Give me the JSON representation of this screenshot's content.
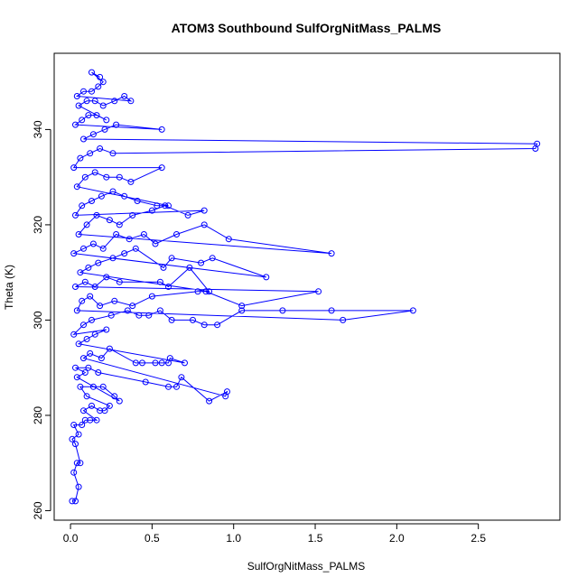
{
  "chart_data": {
    "type": "scatter",
    "title": "ATOM3 Southbound SulfOrgNitMass_PALMS",
    "xlabel": "SulfOrgNitMass_PALMS",
    "ylabel": "Theta (K)",
    "xlim": [
      -0.1,
      3.0
    ],
    "ylim": [
      258,
      356
    ],
    "x_ticks": [
      0.0,
      0.5,
      1.0,
      1.5,
      2.0,
      2.5
    ],
    "x_tick_labels": [
      "0.0",
      "0.5",
      "1.0",
      "1.5",
      "2.0",
      "2.5"
    ],
    "y_ticks": [
      260,
      280,
      300,
      320,
      340
    ],
    "y_tick_labels": [
      "260",
      "280",
      "300",
      "320",
      "340"
    ],
    "grid": false,
    "legend": "none",
    "series_color": "#0000ff",
    "marker": "open-circle",
    "connected": true,
    "series": [
      {
        "points": [
          [
            0.01,
            262
          ],
          [
            0.03,
            262
          ],
          [
            0.05,
            265
          ],
          [
            0.02,
            268
          ],
          [
            0.04,
            270
          ],
          [
            0.06,
            270
          ],
          [
            0.03,
            274
          ],
          [
            0.01,
            275
          ],
          [
            0.05,
            276
          ],
          [
            0.02,
            278
          ],
          [
            0.07,
            278
          ],
          [
            0.09,
            279
          ],
          [
            0.12,
            279
          ],
          [
            0.16,
            279
          ],
          [
            0.08,
            281
          ],
          [
            0.13,
            282
          ],
          [
            0.18,
            281
          ],
          [
            0.21,
            281
          ],
          [
            0.24,
            282
          ],
          [
            0.1,
            284
          ],
          [
            0.06,
            286
          ],
          [
            0.14,
            286
          ],
          [
            0.2,
            286
          ],
          [
            0.27,
            284
          ],
          [
            0.3,
            283
          ],
          [
            0.04,
            288
          ],
          [
            0.09,
            289
          ],
          [
            0.03,
            290
          ],
          [
            0.11,
            290
          ],
          [
            0.17,
            289
          ],
          [
            0.46,
            287
          ],
          [
            0.6,
            286
          ],
          [
            0.65,
            286
          ],
          [
            0.68,
            288
          ],
          [
            0.85,
            283
          ],
          [
            0.96,
            285
          ],
          [
            0.95,
            284
          ],
          [
            0.08,
            292
          ],
          [
            0.12,
            293
          ],
          [
            0.19,
            292
          ],
          [
            0.24,
            294
          ],
          [
            0.4,
            291
          ],
          [
            0.44,
            291
          ],
          [
            0.52,
            291
          ],
          [
            0.56,
            291
          ],
          [
            0.6,
            291
          ],
          [
            0.61,
            292
          ],
          [
            0.7,
            291
          ],
          [
            0.05,
            295
          ],
          [
            0.1,
            296
          ],
          [
            0.15,
            297
          ],
          [
            0.22,
            298
          ],
          [
            0.02,
            297
          ],
          [
            0.08,
            299
          ],
          [
            0.13,
            300
          ],
          [
            0.25,
            301
          ],
          [
            0.35,
            302
          ],
          [
            0.42,
            301
          ],
          [
            0.48,
            301
          ],
          [
            0.55,
            302
          ],
          [
            0.62,
            300
          ],
          [
            0.75,
            300
          ],
          [
            0.82,
            299
          ],
          [
            0.9,
            299
          ],
          [
            1.05,
            302
          ],
          [
            1.3,
            302
          ],
          [
            1.6,
            302
          ],
          [
            2.1,
            302
          ],
          [
            1.67,
            300
          ],
          [
            0.04,
            302
          ],
          [
            0.07,
            304
          ],
          [
            0.12,
            305
          ],
          [
            0.18,
            303
          ],
          [
            0.27,
            304
          ],
          [
            0.38,
            303
          ],
          [
            0.5,
            305
          ],
          [
            0.78,
            306
          ],
          [
            0.83,
            306
          ],
          [
            1.05,
            303
          ],
          [
            1.52,
            306
          ],
          [
            0.03,
            307
          ],
          [
            0.09,
            308
          ],
          [
            0.15,
            307
          ],
          [
            0.22,
            309
          ],
          [
            0.3,
            308
          ],
          [
            0.55,
            308
          ],
          [
            0.6,
            307
          ],
          [
            0.73,
            311
          ],
          [
            0.85,
            306
          ],
          [
            0.06,
            310
          ],
          [
            0.11,
            311
          ],
          [
            0.17,
            312
          ],
          [
            0.26,
            313
          ],
          [
            0.33,
            314
          ],
          [
            0.4,
            315
          ],
          [
            0.57,
            311
          ],
          [
            0.62,
            313
          ],
          [
            0.8,
            312
          ],
          [
            0.87,
            313
          ],
          [
            1.2,
            309
          ],
          [
            0.02,
            314
          ],
          [
            0.08,
            315
          ],
          [
            0.14,
            316
          ],
          [
            0.2,
            315
          ],
          [
            0.28,
            318
          ],
          [
            0.36,
            317
          ],
          [
            0.45,
            318
          ],
          [
            0.52,
            316
          ],
          [
            0.65,
            318
          ],
          [
            0.82,
            320
          ],
          [
            0.97,
            317
          ],
          [
            1.6,
            314
          ],
          [
            0.05,
            318
          ],
          [
            0.1,
            320
          ],
          [
            0.16,
            322
          ],
          [
            0.24,
            321
          ],
          [
            0.3,
            320
          ],
          [
            0.38,
            322
          ],
          [
            0.5,
            323
          ],
          [
            0.58,
            324
          ],
          [
            0.72,
            322
          ],
          [
            0.82,
            323
          ],
          [
            0.03,
            322
          ],
          [
            0.07,
            324
          ],
          [
            0.13,
            325
          ],
          [
            0.19,
            326
          ],
          [
            0.26,
            327
          ],
          [
            0.33,
            326
          ],
          [
            0.41,
            325
          ],
          [
            0.53,
            324
          ],
          [
            0.6,
            324
          ],
          [
            0.04,
            328
          ],
          [
            0.09,
            330
          ],
          [
            0.15,
            331
          ],
          [
            0.22,
            330
          ],
          [
            0.3,
            330
          ],
          [
            0.37,
            329
          ],
          [
            0.56,
            332
          ],
          [
            0.02,
            332
          ],
          [
            0.06,
            334
          ],
          [
            0.12,
            335
          ],
          [
            0.18,
            336
          ],
          [
            0.26,
            335
          ],
          [
            2.85,
            336
          ],
          [
            2.86,
            337
          ],
          [
            0.08,
            338
          ],
          [
            0.14,
            339
          ],
          [
            0.21,
            340
          ],
          [
            0.28,
            341
          ],
          [
            0.56,
            340
          ],
          [
            0.03,
            341
          ],
          [
            0.07,
            342
          ],
          [
            0.11,
            343
          ],
          [
            0.16,
            343
          ],
          [
            0.22,
            342
          ],
          [
            0.05,
            345
          ],
          [
            0.1,
            346
          ],
          [
            0.15,
            346
          ],
          [
            0.2,
            345
          ],
          [
            0.27,
            346
          ],
          [
            0.33,
            347
          ],
          [
            0.37,
            346
          ],
          [
            0.04,
            347
          ],
          [
            0.08,
            348
          ],
          [
            0.13,
            348
          ],
          [
            0.17,
            349
          ],
          [
            0.2,
            350
          ],
          [
            0.13,
            352
          ],
          [
            0.18,
            351
          ]
        ]
      }
    ]
  }
}
